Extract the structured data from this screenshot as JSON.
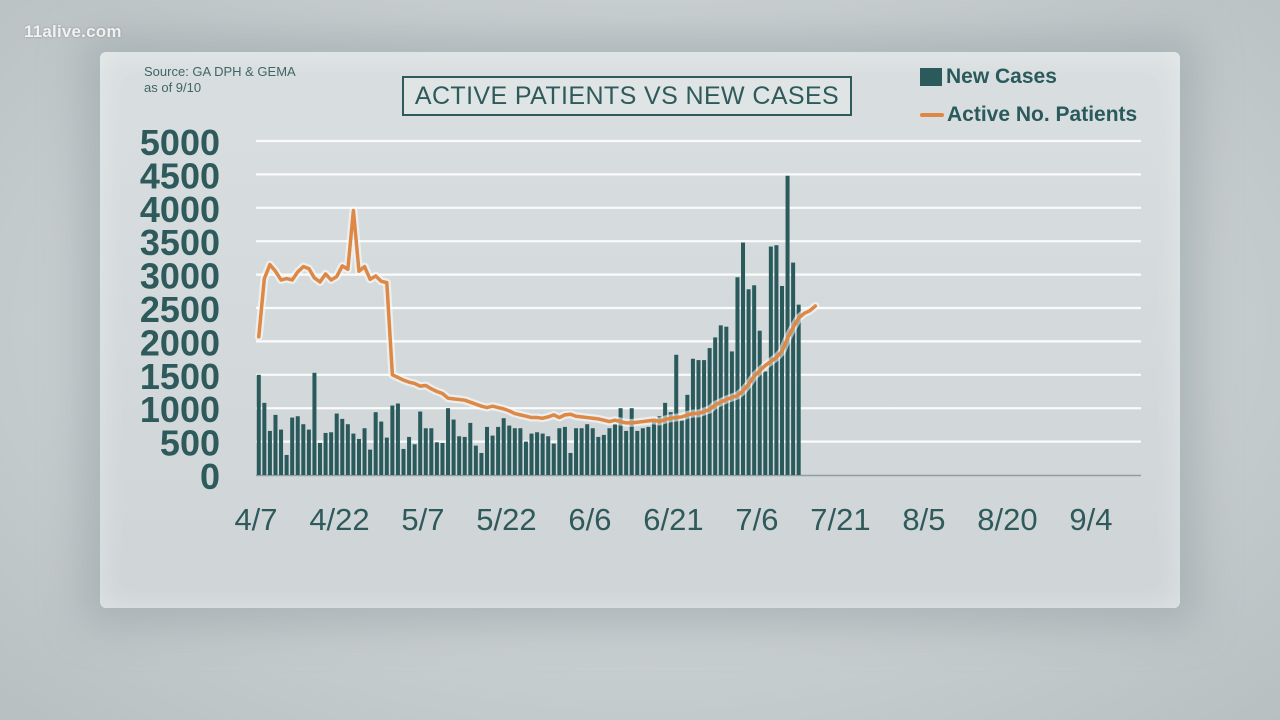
{
  "brand": "11alive.com",
  "source": {
    "line1": "Source: GA DPH & GEMA",
    "line2": "as of 9/10"
  },
  "colors": {
    "bar": "#2a5a5c",
    "line": "#de8845",
    "axis_text": "#2f5a5b",
    "grid": "#ffffff"
  },
  "chart_data": {
    "type": "bar",
    "title": "ACTIVE PATIENTS VS NEW CASES",
    "y_ticks": [
      "0",
      "500",
      "1000",
      "1500",
      "2000",
      "2500",
      "3000",
      "3500",
      "4000",
      "4500",
      "5000"
    ],
    "ylim": [
      0,
      5000
    ],
    "x_ticks": [
      "4/7",
      "4/22",
      "5/7",
      "5/22",
      "6/6",
      "6/21",
      "7/6",
      "7/21",
      "8/5",
      "8/20",
      "9/4"
    ],
    "x_range": [
      "4/7",
      "9/13"
    ],
    "grid": true,
    "legend_position": "top-right",
    "series": [
      {
        "name": "New Cases",
        "type": "bar",
        "start_date": "4/7",
        "values": [
          1500,
          1080,
          660,
          900,
          680,
          300,
          860,
          880,
          760,
          680,
          1530,
          480,
          630,
          640,
          920,
          840,
          760,
          620,
          540,
          700,
          380,
          940,
          800,
          560,
          1040,
          1070,
          390,
          570,
          460,
          950,
          700,
          700,
          490,
          480,
          1000,
          830,
          580,
          570,
          780,
          440,
          330,
          720,
          590,
          720,
          850,
          740,
          700,
          700,
          500,
          620,
          640,
          620,
          580,
          470,
          700,
          720,
          330,
          700,
          700,
          760,
          700,
          570,
          600,
          700,
          760,
          1000,
          660,
          1000,
          660,
          700,
          720,
          820,
          880,
          1080,
          940,
          1800,
          820,
          1200,
          1740,
          1720,
          1720,
          1900,
          2060,
          2240,
          2220,
          1850,
          2960,
          3480,
          2780,
          2840,
          2160,
          1550,
          3420,
          3440,
          2830,
          4480,
          3180,
          2550
        ]
      },
      {
        "name": "Active No. Patients",
        "type": "line",
        "start_date": "4/7",
        "values": [
          2070,
          2940,
          3150,
          3050,
          2920,
          2940,
          2920,
          3040,
          3120,
          3090,
          2950,
          2890,
          3010,
          2920,
          2970,
          3130,
          3080,
          3960,
          3050,
          3120,
          2930,
          2980,
          2900,
          2880,
          1500,
          1460,
          1420,
          1390,
          1370,
          1330,
          1340,
          1290,
          1250,
          1220,
          1150,
          1140,
          1130,
          1120,
          1090,
          1060,
          1030,
          1010,
          1030,
          1010,
          990,
          960,
          920,
          900,
          880,
          860,
          860,
          850,
          870,
          900,
          860,
          900,
          910,
          880,
          870,
          860,
          850,
          840,
          820,
          800,
          820,
          800,
          780,
          780,
          790,
          800,
          810,
          820,
          800,
          830,
          850,
          860,
          870,
          900,
          920,
          920,
          950,
          980,
          1050,
          1090,
          1130,
          1160,
          1190,
          1260,
          1360,
          1480,
          1560,
          1640,
          1700,
          1760,
          1850,
          2050,
          2210,
          2350,
          2420,
          2460,
          2530
        ]
      }
    ]
  }
}
